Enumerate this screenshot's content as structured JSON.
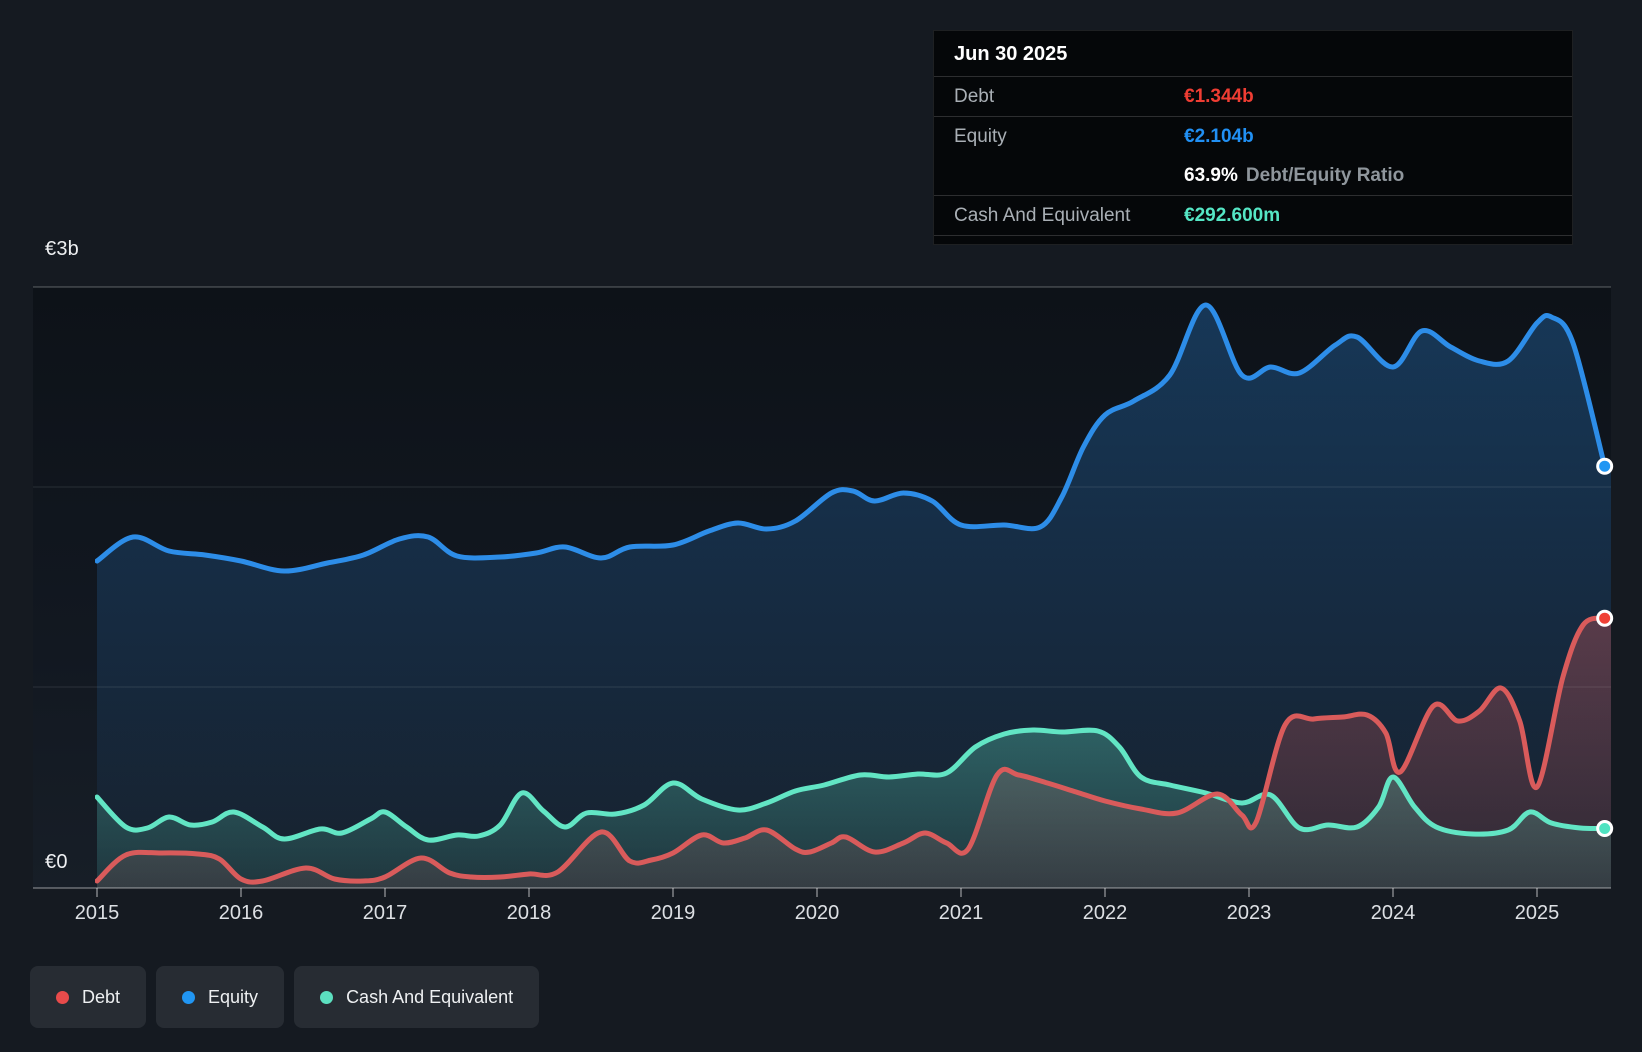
{
  "tooltip": {
    "date": "Jun 30 2025",
    "rows": [
      {
        "label": "Debt",
        "value": "€1.344b",
        "color": "#ef3d33"
      },
      {
        "label": "Equity",
        "value": "€2.104b",
        "color": "#2190f4"
      }
    ],
    "ratio": {
      "value": "63.9%",
      "label": "Debt/Equity Ratio"
    },
    "cash": {
      "label": "Cash And Equivalent",
      "value": "€292.600m",
      "color": "#55e6c5"
    }
  },
  "legend": {
    "items": [
      {
        "label": "Debt",
        "color": "#e84b4b"
      },
      {
        "label": "Equity",
        "color": "#2196f3"
      },
      {
        "label": "Cash And Equivalent",
        "color": "#5ce0c0"
      }
    ]
  },
  "axis": {
    "y_top_label": "€3b",
    "y_bottom_label": "€0"
  },
  "chart_data": {
    "type": "area",
    "title": "",
    "xlabel": "",
    "ylabel": "€ billions",
    "unit": "EUR",
    "xlim": [
      2015,
      2025.55
    ],
    "ylim": [
      0,
      3
    ],
    "grid": "horizontal",
    "legend_position": "bottom-left",
    "x_ticks": [
      2015,
      2016,
      2017,
      2018,
      2019,
      2020,
      2021,
      2022,
      2023,
      2024,
      2025
    ],
    "y_ticks": [
      {
        "value": 3,
        "label": "€3b"
      },
      {
        "value": 0,
        "label": "€0"
      }
    ],
    "last_point": {
      "date": "Jun 30 2025",
      "debt_b": 1.344,
      "equity_b": 2.104,
      "cash_b": 0.2926,
      "debt_equity_ratio_pct": 63.9
    },
    "series": [
      {
        "name": "Equity",
        "color": "#2d8de8",
        "marker_color": "#2196f3",
        "fill_alpha": [
          0.3,
          0.04
        ],
        "points": [
          [
            2015.0,
            1.63
          ],
          [
            2015.25,
            1.75
          ],
          [
            2015.5,
            1.68
          ],
          [
            2015.75,
            1.66
          ],
          [
            2016.0,
            1.63
          ],
          [
            2016.3,
            1.58
          ],
          [
            2016.6,
            1.62
          ],
          [
            2016.85,
            1.66
          ],
          [
            2017.1,
            1.74
          ],
          [
            2017.3,
            1.75
          ],
          [
            2017.5,
            1.655
          ],
          [
            2017.8,
            1.65
          ],
          [
            2018.05,
            1.67
          ],
          [
            2018.25,
            1.7
          ],
          [
            2018.5,
            1.645
          ],
          [
            2018.7,
            1.7
          ],
          [
            2019.0,
            1.71
          ],
          [
            2019.25,
            1.78
          ],
          [
            2019.45,
            1.82
          ],
          [
            2019.65,
            1.79
          ],
          [
            2019.85,
            1.83
          ],
          [
            2020.1,
            1.97
          ],
          [
            2020.25,
            1.98
          ],
          [
            2020.4,
            1.93
          ],
          [
            2020.6,
            1.97
          ],
          [
            2020.8,
            1.93
          ],
          [
            2021.0,
            1.81
          ],
          [
            2021.3,
            1.81
          ],
          [
            2021.55,
            1.8
          ],
          [
            2021.7,
            1.95
          ],
          [
            2021.85,
            2.2
          ],
          [
            2022.0,
            2.36
          ],
          [
            2022.2,
            2.43
          ],
          [
            2022.45,
            2.56
          ],
          [
            2022.7,
            2.91
          ],
          [
            2022.95,
            2.56
          ],
          [
            2023.15,
            2.6
          ],
          [
            2023.35,
            2.57
          ],
          [
            2023.6,
            2.71
          ],
          [
            2023.75,
            2.75
          ],
          [
            2024.0,
            2.6
          ],
          [
            2024.2,
            2.78
          ],
          [
            2024.4,
            2.7
          ],
          [
            2024.6,
            2.63
          ],
          [
            2024.8,
            2.63
          ],
          [
            2025.0,
            2.82
          ],
          [
            2025.1,
            2.85
          ],
          [
            2025.25,
            2.72
          ],
          [
            2025.47,
            2.104
          ]
        ]
      },
      {
        "name": "Debt",
        "color": "#d95b5b",
        "marker_color": "#ef4136",
        "fill_alpha": [
          0.34,
          0.12
        ],
        "points": [
          [
            2015.0,
            0.03
          ],
          [
            2015.2,
            0.16
          ],
          [
            2015.45,
            0.17
          ],
          [
            2015.7,
            0.165
          ],
          [
            2015.85,
            0.14
          ],
          [
            2016.0,
            0.04
          ],
          [
            2016.15,
            0.03
          ],
          [
            2016.45,
            0.095
          ],
          [
            2016.65,
            0.04
          ],
          [
            2016.85,
            0.03
          ],
          [
            2017.0,
            0.05
          ],
          [
            2017.25,
            0.145
          ],
          [
            2017.45,
            0.07
          ],
          [
            2017.6,
            0.05
          ],
          [
            2017.8,
            0.05
          ],
          [
            2018.0,
            0.065
          ],
          [
            2018.2,
            0.075
          ],
          [
            2018.5,
            0.275
          ],
          [
            2018.7,
            0.13
          ],
          [
            2018.85,
            0.135
          ],
          [
            2019.0,
            0.17
          ],
          [
            2019.2,
            0.26
          ],
          [
            2019.35,
            0.22
          ],
          [
            2019.5,
            0.245
          ],
          [
            2019.65,
            0.285
          ],
          [
            2019.85,
            0.19
          ],
          [
            2019.95,
            0.175
          ],
          [
            2020.1,
            0.22
          ],
          [
            2020.2,
            0.25
          ],
          [
            2020.4,
            0.175
          ],
          [
            2020.6,
            0.22
          ],
          [
            2020.75,
            0.27
          ],
          [
            2020.9,
            0.22
          ],
          [
            2021.05,
            0.19
          ],
          [
            2021.25,
            0.56
          ],
          [
            2021.4,
            0.56
          ],
          [
            2021.6,
            0.52
          ],
          [
            2021.8,
            0.475
          ],
          [
            2022.0,
            0.43
          ],
          [
            2022.25,
            0.39
          ],
          [
            2022.5,
            0.37
          ],
          [
            2022.78,
            0.465
          ],
          [
            2022.95,
            0.36
          ],
          [
            2023.05,
            0.325
          ],
          [
            2023.25,
            0.81
          ],
          [
            2023.45,
            0.84
          ],
          [
            2023.65,
            0.85
          ],
          [
            2023.82,
            0.86
          ],
          [
            2023.95,
            0.77
          ],
          [
            2024.05,
            0.575
          ],
          [
            2024.28,
            0.905
          ],
          [
            2024.45,
            0.83
          ],
          [
            2024.6,
            0.88
          ],
          [
            2024.75,
            0.995
          ],
          [
            2024.88,
            0.83
          ],
          [
            2025.0,
            0.5
          ],
          [
            2025.18,
            1.05
          ],
          [
            2025.32,
            1.31
          ],
          [
            2025.47,
            1.344
          ]
        ]
      },
      {
        "name": "Cash And Equivalent",
        "color": "#62e5c4",
        "marker_color": "#4fe3c1",
        "fill_alpha": [
          0.3,
          0.1
        ],
        "points": [
          [
            2015.0,
            0.45
          ],
          [
            2015.2,
            0.3
          ],
          [
            2015.35,
            0.295
          ],
          [
            2015.5,
            0.35
          ],
          [
            2015.65,
            0.31
          ],
          [
            2015.8,
            0.325
          ],
          [
            2015.95,
            0.375
          ],
          [
            2016.15,
            0.3
          ],
          [
            2016.3,
            0.24
          ],
          [
            2016.55,
            0.29
          ],
          [
            2016.7,
            0.27
          ],
          [
            2016.9,
            0.34
          ],
          [
            2017.0,
            0.375
          ],
          [
            2017.15,
            0.3
          ],
          [
            2017.3,
            0.235
          ],
          [
            2017.5,
            0.26
          ],
          [
            2017.65,
            0.255
          ],
          [
            2017.8,
            0.31
          ],
          [
            2017.95,
            0.47
          ],
          [
            2018.1,
            0.38
          ],
          [
            2018.25,
            0.3
          ],
          [
            2018.4,
            0.37
          ],
          [
            2018.6,
            0.365
          ],
          [
            2018.8,
            0.41
          ],
          [
            2019.0,
            0.52
          ],
          [
            2019.2,
            0.44
          ],
          [
            2019.45,
            0.385
          ],
          [
            2019.65,
            0.42
          ],
          [
            2019.85,
            0.48
          ],
          [
            2020.05,
            0.51
          ],
          [
            2020.3,
            0.56
          ],
          [
            2020.5,
            0.55
          ],
          [
            2020.7,
            0.565
          ],
          [
            2020.9,
            0.57
          ],
          [
            2021.1,
            0.7
          ],
          [
            2021.3,
            0.765
          ],
          [
            2021.5,
            0.785
          ],
          [
            2021.7,
            0.775
          ],
          [
            2021.95,
            0.78
          ],
          [
            2022.1,
            0.7
          ],
          [
            2022.25,
            0.55
          ],
          [
            2022.45,
            0.51
          ],
          [
            2022.7,
            0.47
          ],
          [
            2022.95,
            0.42
          ],
          [
            2023.15,
            0.46
          ],
          [
            2023.35,
            0.295
          ],
          [
            2023.55,
            0.31
          ],
          [
            2023.75,
            0.3
          ],
          [
            2023.9,
            0.4
          ],
          [
            2024.0,
            0.55
          ],
          [
            2024.15,
            0.4
          ],
          [
            2024.3,
            0.3
          ],
          [
            2024.55,
            0.265
          ],
          [
            2024.8,
            0.285
          ],
          [
            2024.95,
            0.375
          ],
          [
            2025.1,
            0.32
          ],
          [
            2025.3,
            0.295
          ],
          [
            2025.47,
            0.2926
          ]
        ]
      }
    ]
  }
}
